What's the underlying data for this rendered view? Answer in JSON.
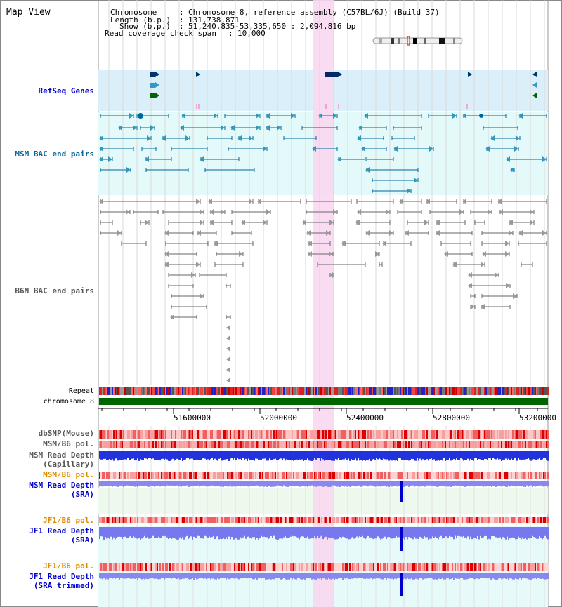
{
  "title": "Map View",
  "info": {
    "chromosome_key": "Chromosome",
    "chromosome_value": "Chromosome 8, reference assembly (C57BL/6J) (Build 37)",
    "length_key": "Length (b.p.)",
    "length_value": "131,738,871",
    "show_key": "Show (b.p.)",
    "show_value": "51,240,835-53,335,650 : 2,094,816 bp",
    "coverage_key": "Read coverage check span",
    "coverage_value": "10,000"
  },
  "tracks": {
    "refseq": "RefSeq Genes",
    "msm_bac": "MSM BAC end pairs",
    "b6n_bac": "B6N BAC end pairs",
    "repeat": "Repeat",
    "chromosome": "chromosome 8",
    "dbsnp": "dbSNP(Mouse)",
    "msm_b6_pol": "MSM/B6 pol.",
    "msm_depth_cap_1": "MSM Read Depth",
    "msm_depth_cap_2": "(Capillary)",
    "msm_b6_pol2": "MSM/B6 pol.",
    "msm_depth_sra_1": "MSM Read Depth",
    "msm_depth_sra_2": "(SRA)",
    "jf1_b6_pol": "JF1/B6 pol.",
    "jf1_depth_sra_1": "JF1 Read Depth",
    "jf1_depth_sra_2": "(SRA)",
    "jf1_b6_pol2": "JF1/B6 pol.",
    "jf1_depth_trim_1": "JF1 Read Depth",
    "jf1_depth_trim_2": "(SRA trimmed)"
  },
  "axis": {
    "ticks": [
      "51600000",
      "52000000",
      "52400000",
      "52800000",
      "53200000"
    ]
  },
  "colors": {
    "refseq_bg": "#dbeffa",
    "bac_bg": "#e4fafa",
    "highlight": "#f8d8f0",
    "label_blue": "#0000cc",
    "label_teal": "#006699",
    "label_orange": "#e08a00",
    "chromosome_bar": "#006600"
  }
}
